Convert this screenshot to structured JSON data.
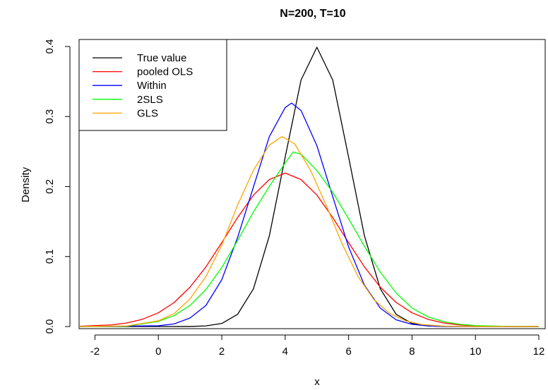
{
  "chart_data": {
    "type": "line",
    "title": "N=200, T=10",
    "xlabel": "x",
    "ylabel": "Density",
    "xlim": [
      -2.5,
      12.2
    ],
    "ylim": [
      -0.003,
      0.41
    ],
    "xticks": [
      "-2",
      "0",
      "2",
      "4",
      "6",
      "8",
      "10",
      "12"
    ],
    "yticks": [
      "0.0",
      "0.1",
      "0.2",
      "0.3",
      "0.4"
    ],
    "grid": false,
    "legend_position": "top-left",
    "series": [
      {
        "name": "True value",
        "color": "#000000",
        "distribution": "normal",
        "mean": 5.0,
        "sd": 1.0,
        "points": [
          [
            -2.5,
            0.0
          ],
          [
            0.0,
            0.0
          ],
          [
            1.0,
            0.0001
          ],
          [
            1.5,
            0.0009
          ],
          [
            2.0,
            0.0044
          ],
          [
            2.5,
            0.0175
          ],
          [
            3.0,
            0.054
          ],
          [
            3.5,
            0.1295
          ],
          [
            4.0,
            0.242
          ],
          [
            4.5,
            0.3521
          ],
          [
            5.0,
            0.3989
          ],
          [
            5.5,
            0.3521
          ],
          [
            6.0,
            0.242
          ],
          [
            6.5,
            0.1295
          ],
          [
            7.0,
            0.054
          ],
          [
            7.5,
            0.0175
          ],
          [
            8.0,
            0.0044
          ],
          [
            8.5,
            0.0009
          ],
          [
            9.0,
            0.0001
          ],
          [
            10.0,
            0.0
          ],
          [
            12.0,
            0.0
          ]
        ]
      },
      {
        "name": "pooled OLS",
        "color": "#ff0000",
        "distribution": "normal",
        "mean": 4.0,
        "sd": 1.82,
        "points": [
          [
            -2.5,
            0.0004
          ],
          [
            -1.5,
            0.0023
          ],
          [
            -1.0,
            0.0051
          ],
          [
            -0.5,
            0.0104
          ],
          [
            0.0,
            0.0196
          ],
          [
            0.5,
            0.0344
          ],
          [
            1.0,
            0.0563
          ],
          [
            1.5,
            0.0852
          ],
          [
            2.0,
            0.1199
          ],
          [
            2.5,
            0.1557
          ],
          [
            3.0,
            0.1878
          ],
          [
            3.5,
            0.2099
          ],
          [
            4.0,
            0.2192
          ],
          [
            4.5,
            0.2099
          ],
          [
            5.0,
            0.1878
          ],
          [
            5.5,
            0.1557
          ],
          [
            6.0,
            0.1199
          ],
          [
            6.5,
            0.0852
          ],
          [
            7.0,
            0.0563
          ],
          [
            7.5,
            0.0344
          ],
          [
            8.0,
            0.0196
          ],
          [
            8.5,
            0.0104
          ],
          [
            9.0,
            0.0051
          ],
          [
            9.5,
            0.0023
          ],
          [
            10.0,
            0.001
          ],
          [
            11.0,
            0.0001
          ],
          [
            12.0,
            0.0
          ]
        ]
      },
      {
        "name": "Within",
        "color": "#0000ff",
        "distribution": "normal",
        "mean": 4.2,
        "sd": 1.25,
        "points": [
          [
            -2.5,
            0.0
          ],
          [
            0.0,
            0.0011
          ],
          [
            0.5,
            0.0038
          ],
          [
            1.0,
            0.0122
          ],
          [
            1.5,
            0.0301
          ],
          [
            2.0,
            0.0669
          ],
          [
            2.5,
            0.1273
          ],
          [
            3.0,
            0.1996
          ],
          [
            3.5,
            0.2713
          ],
          [
            4.0,
            0.3127
          ],
          [
            4.2,
            0.3192
          ],
          [
            4.5,
            0.3086
          ],
          [
            5.0,
            0.2584
          ],
          [
            5.5,
            0.1856
          ],
          [
            6.0,
            0.1137
          ],
          [
            6.5,
            0.0591
          ],
          [
            7.0,
            0.0263
          ],
          [
            7.5,
            0.0096
          ],
          [
            8.0,
            0.0032
          ],
          [
            8.5,
            0.0009
          ],
          [
            9.0,
            0.0002
          ],
          [
            10.0,
            0.0
          ],
          [
            12.0,
            0.0
          ]
        ]
      },
      {
        "name": "2SLS",
        "color": "#00ff00",
        "distribution": "normal",
        "mean": 4.25,
        "sd": 1.6,
        "points": [
          [
            -2.5,
            0.0
          ],
          [
            -1.0,
            0.0005
          ],
          [
            0.0,
            0.0074
          ],
          [
            0.5,
            0.0157
          ],
          [
            1.0,
            0.0303
          ],
          [
            1.5,
            0.0528
          ],
          [
            2.0,
            0.0843
          ],
          [
            2.5,
            0.1229
          ],
          [
            3.0,
            0.1637
          ],
          [
            3.5,
            0.2003
          ],
          [
            4.0,
            0.2336
          ],
          [
            4.25,
            0.2493
          ],
          [
            4.5,
            0.2462
          ],
          [
            5.0,
            0.2228
          ],
          [
            5.5,
            0.1918
          ],
          [
            6.0,
            0.1539
          ],
          [
            6.5,
            0.1147
          ],
          [
            7.0,
            0.0778
          ],
          [
            7.5,
            0.0479
          ],
          [
            8.0,
            0.0264
          ],
          [
            8.5,
            0.0139
          ],
          [
            9.0,
            0.0069
          ],
          [
            9.5,
            0.0033
          ],
          [
            10.0,
            0.0014
          ],
          [
            11.0,
            0.0002
          ],
          [
            12.0,
            0.0
          ]
        ]
      },
      {
        "name": "GLS",
        "color": "#ffa500",
        "distribution": "normal",
        "mean": 3.9,
        "sd": 1.47,
        "points": [
          [
            -2.5,
            0.0
          ],
          [
            -1.0,
            0.0009
          ],
          [
            0.0,
            0.0082
          ],
          [
            0.5,
            0.0186
          ],
          [
            1.0,
            0.0395
          ],
          [
            1.5,
            0.0715
          ],
          [
            2.0,
            0.1163
          ],
          [
            2.5,
            0.1735
          ],
          [
            3.0,
            0.2234
          ],
          [
            3.5,
            0.2592
          ],
          [
            3.9,
            0.2714
          ],
          [
            4.3,
            0.2608
          ],
          [
            4.8,
            0.2231
          ],
          [
            5.3,
            0.1725
          ],
          [
            5.8,
            0.1178
          ],
          [
            6.3,
            0.0712
          ],
          [
            6.8,
            0.0383
          ],
          [
            7.3,
            0.0188
          ],
          [
            7.8,
            0.0081
          ],
          [
            8.3,
            0.0029
          ],
          [
            9.0,
            0.0006
          ],
          [
            10.0,
            0.0001
          ],
          [
            12.0,
            0.0
          ]
        ]
      }
    ]
  }
}
